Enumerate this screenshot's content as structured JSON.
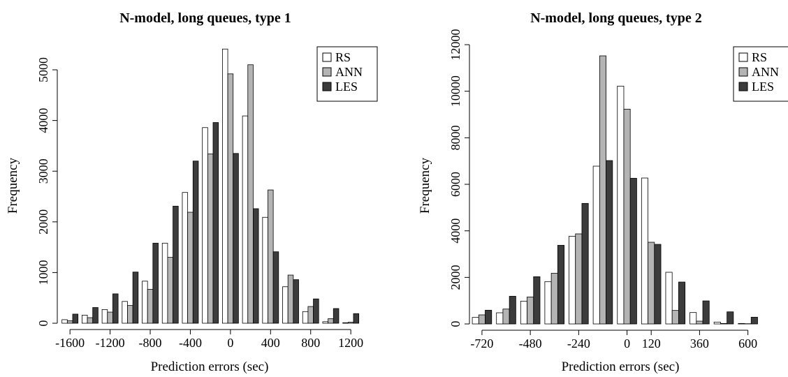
{
  "chart_data": [
    {
      "type": "bar",
      "title": "N-model, long queues, type 1",
      "xlabel": "Prediction errors (sec)",
      "ylabel": "Frequency",
      "ylim": [
        0,
        5000
      ],
      "yticks": [
        0,
        1000,
        2000,
        3000,
        4000,
        5000
      ],
      "xticks": [
        -1600,
        -1200,
        -800,
        -400,
        0,
        400,
        800,
        1200
      ],
      "bin_width": 200,
      "categories": [
        -1600,
        -1400,
        -1200,
        -1000,
        -800,
        -600,
        -400,
        -200,
        0,
        200,
        400,
        600,
        800,
        1000,
        1200
      ],
      "series": [
        {
          "name": "RS",
          "color": "#ffffff",
          "values": [
            70,
            160,
            270,
            430,
            830,
            1580,
            2580,
            3860,
            5410,
            4090,
            2090,
            720,
            230,
            30,
            10
          ]
        },
        {
          "name": "ANN",
          "color": "#b4b4b4",
          "values": [
            50,
            110,
            220,
            350,
            670,
            1300,
            2190,
            3340,
            4920,
            5100,
            2630,
            950,
            330,
            90,
            20
          ]
        },
        {
          "name": "LES",
          "color": "#3c3c3c",
          "values": [
            180,
            310,
            580,
            1010,
            1580,
            2310,
            3200,
            3960,
            3350,
            2260,
            1410,
            860,
            480,
            290,
            190
          ]
        }
      ],
      "grid": false,
      "legend_position": "top-right"
    },
    {
      "type": "bar",
      "title": "N-model, long queues, type 2",
      "xlabel": "Prediction errors (sec)",
      "ylabel": "Frequency",
      "ylim": [
        0,
        12000
      ],
      "yticks": [
        0,
        2000,
        4000,
        6000,
        8000,
        10000,
        12000
      ],
      "xticks": [
        -720,
        -480,
        -240,
        0,
        120,
        360,
        600
      ],
      "bin_width": 120,
      "categories": [
        -720,
        -600,
        -480,
        -360,
        -240,
        -120,
        0,
        120,
        240,
        360,
        480,
        600,
        720
      ],
      "series": [
        {
          "name": "RS",
          "color": "#ffffff",
          "values": [
            280,
            480,
            980,
            1820,
            3770,
            6780,
            10220,
            6270,
            2220,
            490,
            80,
            20,
            0
          ]
        },
        {
          "name": "ANN",
          "color": "#b4b4b4",
          "values": [
            390,
            640,
            1160,
            2180,
            3870,
            11520,
            9230,
            3510,
            580,
            120,
            20,
            10,
            0
          ]
        },
        {
          "name": "LES",
          "color": "#3c3c3c",
          "values": [
            590,
            1190,
            2030,
            3380,
            5180,
            7020,
            6260,
            3420,
            1800,
            990,
            520,
            290,
            0
          ]
        }
      ],
      "grid": false,
      "legend_position": "top-right"
    }
  ]
}
